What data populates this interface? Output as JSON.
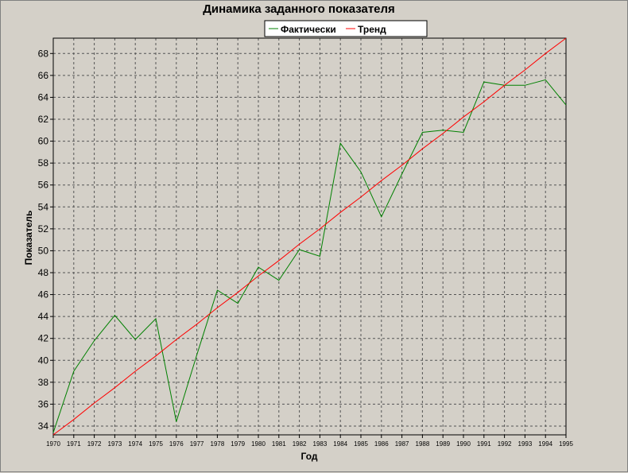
{
  "chart_data": {
    "type": "line",
    "title": "Динамика заданного показателя",
    "xlabel": "Год",
    "ylabel": "Показатель",
    "x": [
      "1970",
      "1971",
      "1972",
      "1973",
      "1974",
      "1975",
      "1976",
      "1977",
      "1978",
      "1979",
      "1980",
      "1981",
      "1982",
      "1983",
      "1984",
      "1985",
      "1986",
      "1987",
      "1988",
      "1989",
      "1990",
      "1991",
      "1992",
      "1993",
      "1994",
      "1995"
    ],
    "yticks": [
      34,
      36,
      38,
      40,
      42,
      44,
      46,
      48,
      50,
      52,
      54,
      56,
      58,
      60,
      62,
      64,
      66,
      68
    ],
    "ylim": [
      33.2,
      69.4
    ],
    "grid": true,
    "legend_position": "top-center",
    "series": [
      {
        "name": "Фактически",
        "color": "#008000",
        "values": [
          33.4,
          39.0,
          41.8,
          44.1,
          41.9,
          43.8,
          34.4,
          40.5,
          46.4,
          45.2,
          48.5,
          47.3,
          50.1,
          49.5,
          59.8,
          57.2,
          53.1,
          57.0,
          60.8,
          61.0,
          60.8,
          65.4,
          65.1,
          65.1,
          65.6,
          63.3
        ]
      },
      {
        "name": "Тренд",
        "color": "#ff0000",
        "values": [
          33.2,
          34.6,
          36.1,
          37.5,
          39.0,
          40.4,
          41.9,
          43.3,
          44.8,
          46.2,
          47.7,
          49.1,
          50.6,
          52.0,
          53.5,
          54.9,
          56.4,
          57.8,
          59.3,
          60.7,
          62.2,
          63.6,
          65.1,
          66.5,
          68.0,
          69.4
        ]
      }
    ]
  }
}
